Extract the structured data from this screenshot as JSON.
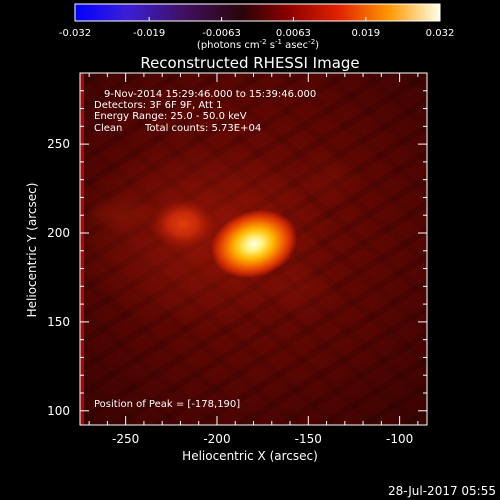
{
  "colorbar": {
    "ticks": [
      "-0.032",
      "-0.019",
      "-0.0063",
      "0.0063",
      "0.019",
      "0.032"
    ],
    "min": -0.032,
    "max": 0.032,
    "unit_main": "(photons cm",
    "unit_sup1": "-2",
    "unit_mid": " s",
    "unit_sup2": "-1",
    "unit_tail": " asec",
    "unit_sup3": "-2",
    "unit_close": ")"
  },
  "title": "Reconstructed RHESSI Image",
  "info": {
    "time_range": "9-Nov-2014 15:29:46.000 to 15:39:46.000",
    "detectors": "Detectors: 3F 6F 9F, Att 1",
    "energy": "Energy Range: 25.0 - 50.0 keV",
    "algorithm": "Clean",
    "counts": "Total counts: 5.73E+04",
    "peak": "Position of Peak = [-178,190]"
  },
  "axes": {
    "x_label": "Heliocentric X (arcsec)",
    "y_label": "Heliocentric Y (arcsec)",
    "x_ticks": [
      "-250",
      "-200",
      "-150",
      "-100"
    ],
    "y_ticks": [
      "100",
      "150",
      "200",
      "250"
    ],
    "x_tick_values": [
      -250,
      -200,
      -150,
      -100
    ],
    "y_tick_values": [
      100,
      150,
      200,
      250
    ],
    "x_range": [
      -275,
      -85
    ],
    "y_range": [
      92,
      290
    ]
  },
  "image": {
    "peak_position": [
      -178,
      190
    ],
    "secondary_source": [
      -215,
      202
    ],
    "colormap": [
      "#000000",
      "#3a0000",
      "#8a0000",
      "#c81800",
      "#ff5a00",
      "#ffb000",
      "#ffffd0"
    ]
  },
  "footer_date": "28-Jul-2017 05:55"
}
